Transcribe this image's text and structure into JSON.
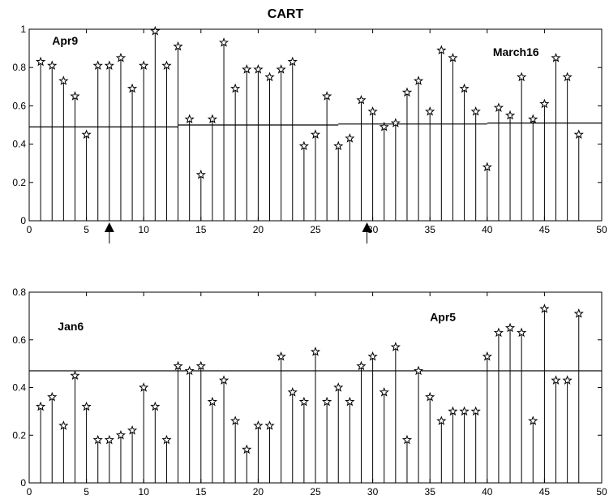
{
  "title": "CART",
  "chart_data": [
    {
      "type": "stem",
      "title": "CART",
      "xlim": [
        0,
        50
      ],
      "ylim": [
        0,
        1
      ],
      "xticks": [
        0,
        5,
        10,
        15,
        20,
        25,
        30,
        35,
        40,
        45,
        50
      ],
      "yticks": [
        0,
        0.2,
        0.4,
        0.6,
        0.8,
        1
      ],
      "x": [
        1,
        2,
        3,
        4,
        5,
        6,
        7,
        8,
        9,
        10,
        11,
        12,
        13,
        14,
        15,
        16,
        17,
        18,
        19,
        20,
        21,
        22,
        23,
        24,
        25,
        26,
        27,
        28,
        29,
        30,
        31,
        32,
        33,
        34,
        35,
        36,
        37,
        38,
        39,
        40,
        41,
        42,
        43,
        44,
        45,
        46,
        47,
        48
      ],
      "values": [
        0.83,
        0.81,
        0.73,
        0.65,
        0.45,
        0.81,
        0.81,
        0.85,
        0.69,
        0.81,
        0.99,
        0.81,
        0.91,
        0.53,
        0.24,
        0.53,
        0.93,
        0.69,
        0.79,
        0.79,
        0.75,
        0.79,
        0.83,
        0.39,
        0.45,
        0.65,
        0.39,
        0.43,
        0.63,
        0.57,
        0.49,
        0.51,
        0.67,
        0.73,
        0.57,
        0.89,
        0.85,
        0.69,
        0.57,
        0.28,
        0.59,
        0.55,
        0.75,
        0.53,
        0.61,
        0.85,
        0.75,
        0.45
      ],
      "mean_line": [
        {
          "x": [
            0,
            13
          ],
          "y": 0.49
        },
        {
          "x": [
            13,
            27
          ],
          "y": 0.5
        },
        {
          "x": [
            27,
            40
          ],
          "y": 0.505
        },
        {
          "x": [
            40,
            50
          ],
          "y": 0.51
        }
      ],
      "annotations": [
        {
          "text": "Apr9",
          "x": 2,
          "y": 0.92
        },
        {
          "text": "March16",
          "x": 40.5,
          "y": 0.86
        }
      ],
      "arrows_at_x": [
        7,
        29.5
      ]
    },
    {
      "type": "stem",
      "xlim": [
        0,
        50
      ],
      "ylim": [
        0,
        0.8
      ],
      "xticks": [
        0,
        5,
        10,
        15,
        20,
        25,
        30,
        35,
        40,
        45,
        50
      ],
      "yticks": [
        0,
        0.2,
        0.4,
        0.6,
        0.8
      ],
      "x": [
        1,
        2,
        3,
        4,
        5,
        6,
        7,
        8,
        9,
        10,
        11,
        12,
        13,
        14,
        15,
        16,
        17,
        18,
        19,
        20,
        21,
        22,
        23,
        24,
        25,
        26,
        27,
        28,
        29,
        30,
        31,
        32,
        33,
        34,
        35,
        36,
        37,
        38,
        39,
        40,
        41,
        42,
        43,
        44,
        45,
        46,
        47,
        48
      ],
      "values": [
        0.32,
        0.36,
        0.24,
        0.45,
        0.32,
        0.18,
        0.18,
        0.2,
        0.22,
        0.4,
        0.32,
        0.18,
        0.49,
        0.47,
        0.49,
        0.34,
        0.43,
        0.26,
        0.14,
        0.24,
        0.24,
        0.53,
        0.38,
        0.34,
        0.55,
        0.34,
        0.4,
        0.34,
        0.49,
        0.53,
        0.38,
        0.57,
        0.18,
        0.47,
        0.36,
        0.26,
        0.3,
        0.3,
        0.3,
        0.53,
        0.63,
        0.65,
        0.63,
        0.26,
        0.73,
        0.43,
        0.43,
        0.71
      ],
      "mean_line": [
        {
          "x": [
            0,
            50
          ],
          "y": 0.47
        }
      ],
      "annotations": [
        {
          "text": "Jan6",
          "x": 2.5,
          "y": 0.64
        },
        {
          "text": "Apr5",
          "x": 35,
          "y": 0.68
        }
      ]
    }
  ]
}
